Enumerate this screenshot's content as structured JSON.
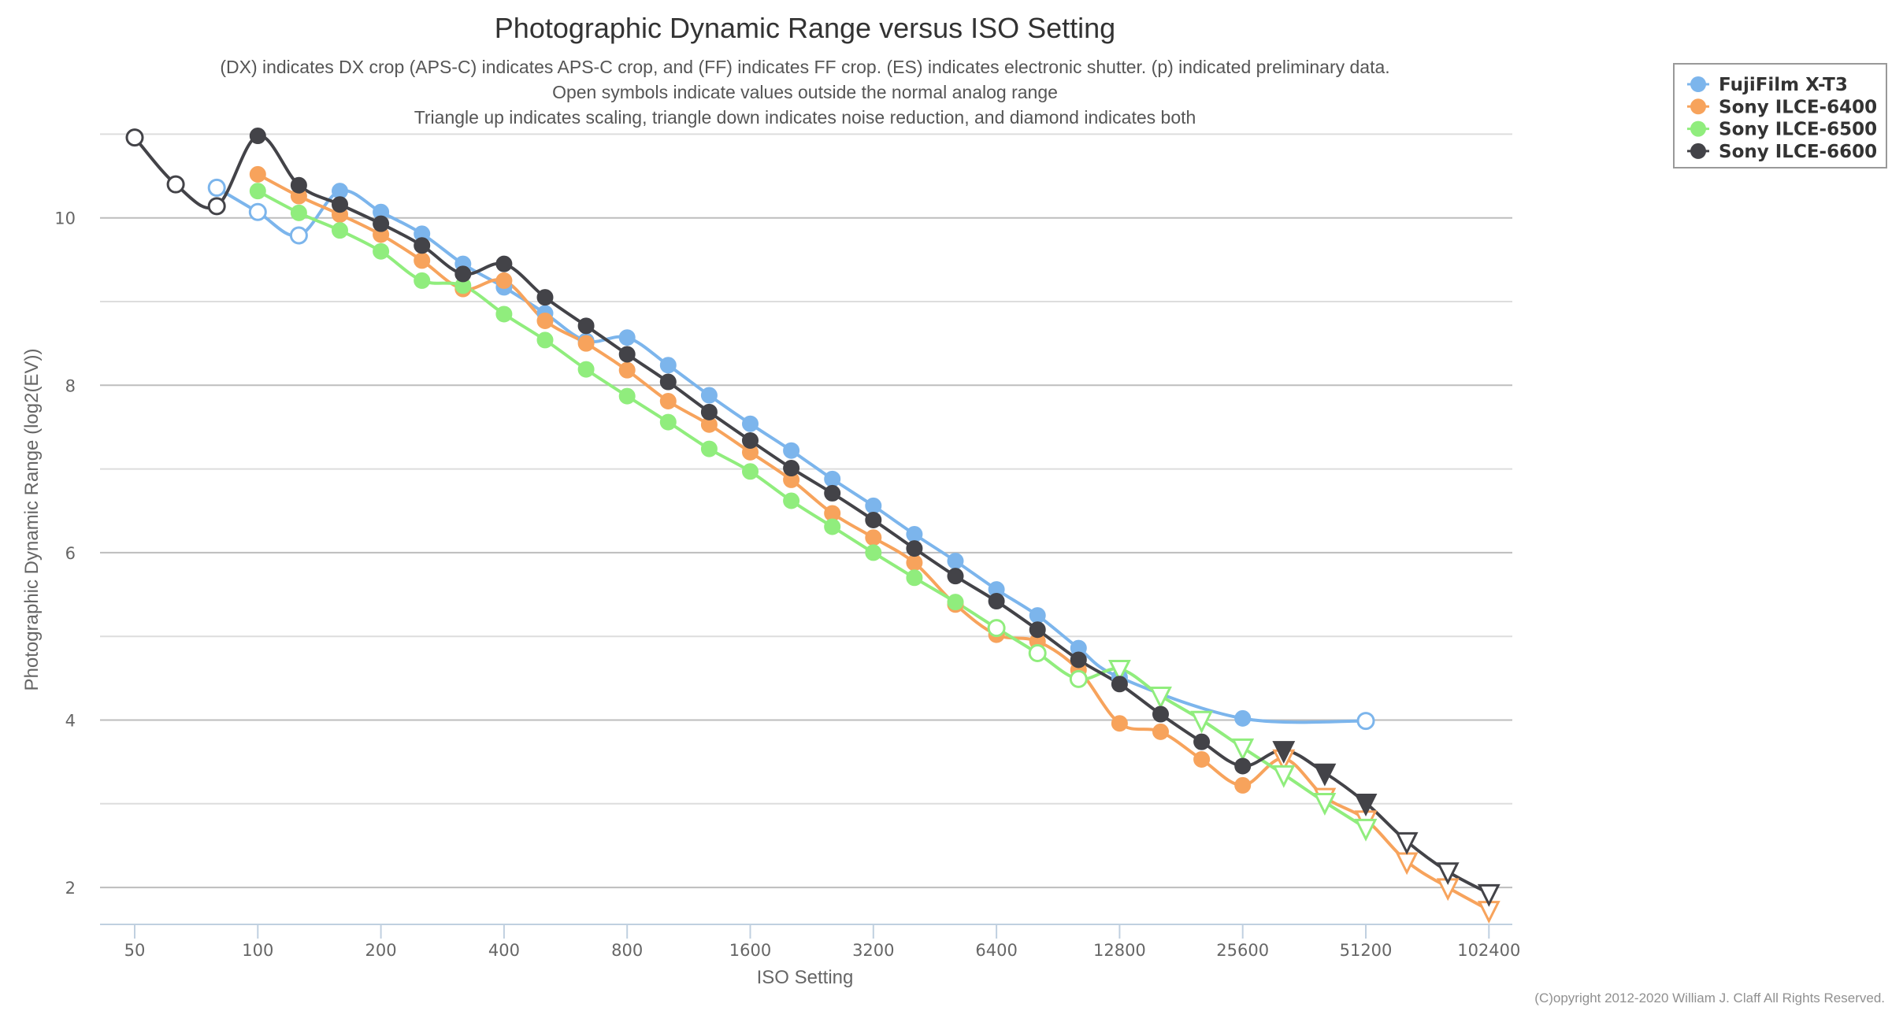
{
  "chart_data": {
    "type": "line",
    "title": "Photographic Dynamic Range versus ISO Setting",
    "subtitle": [
      "(DX) indicates DX crop (APS-C) indicates APS-C crop, and (FF) indicates FF crop. (ES) indicates electronic shutter. (p) indicated preliminary data.",
      "Open symbols indicate values outside the normal analog range",
      "Triangle up indicates scaling, triangle down indicates noise reduction, and diamond indicates both"
    ],
    "xlabel": "ISO Setting",
    "ylabel": "Photographic Dynamic Range (log2(EV))",
    "x_scale": "log2",
    "x_ticks": [
      50,
      100,
      200,
      400,
      800,
      1600,
      3200,
      6400,
      12800,
      25600,
      51200,
      102400
    ],
    "x_tick_labels": [
      "50",
      "100",
      "200",
      "400",
      "800",
      "1600",
      "3200",
      "6400",
      "12800",
      "25600",
      "51200",
      "102400"
    ],
    "xlim": [
      50,
      102400
    ],
    "ylim": [
      1.56,
      11
    ],
    "y_ticks": [
      2,
      4,
      6,
      8,
      10
    ],
    "y_tick_labels": [
      "2",
      "4",
      "6",
      "8",
      "10"
    ],
    "y_minor_gridlines": [
      3,
      5,
      7,
      9,
      11
    ],
    "grid": true,
    "legend_position": "top-right",
    "credit": "(C)opyright 2012-2020 William J. Claff All Rights Reserved.",
    "series": [
      {
        "name": "FujiFilm X-T3",
        "color": "#7cb5ec",
        "points": [
          {
            "iso": 80,
            "dr": 10.36,
            "marker": "circle-open"
          },
          {
            "iso": 100,
            "dr": 10.07,
            "marker": "circle-open"
          },
          {
            "iso": 125,
            "dr": 9.79,
            "marker": "circle-open"
          },
          {
            "iso": 160,
            "dr": 10.32,
            "marker": "circle"
          },
          {
            "iso": 200,
            "dr": 10.07,
            "marker": "circle"
          },
          {
            "iso": 250,
            "dr": 9.81,
            "marker": "circle"
          },
          {
            "iso": 320,
            "dr": 9.45,
            "marker": "circle"
          },
          {
            "iso": 400,
            "dr": 9.17,
            "marker": "circle"
          },
          {
            "iso": 500,
            "dr": 8.86,
            "marker": "circle"
          },
          {
            "iso": 640,
            "dr": 8.53,
            "marker": "circle"
          },
          {
            "iso": 800,
            "dr": 8.57,
            "marker": "circle"
          },
          {
            "iso": 1000,
            "dr": 8.24,
            "marker": "circle"
          },
          {
            "iso": 1250,
            "dr": 7.88,
            "marker": "circle"
          },
          {
            "iso": 1600,
            "dr": 7.54,
            "marker": "circle"
          },
          {
            "iso": 2000,
            "dr": 7.22,
            "marker": "circle"
          },
          {
            "iso": 2500,
            "dr": 6.88,
            "marker": "circle"
          },
          {
            "iso": 3200,
            "dr": 6.56,
            "marker": "circle"
          },
          {
            "iso": 4000,
            "dr": 6.22,
            "marker": "circle"
          },
          {
            "iso": 5000,
            "dr": 5.9,
            "marker": "circle"
          },
          {
            "iso": 6400,
            "dr": 5.56,
            "marker": "circle"
          },
          {
            "iso": 8000,
            "dr": 5.25,
            "marker": "circle"
          },
          {
            "iso": 10000,
            "dr": 4.86,
            "marker": "circle"
          },
          {
            "iso": 12800,
            "dr": 4.51,
            "marker": "circle"
          },
          {
            "iso": 25600,
            "dr": 4.02,
            "marker": "circle"
          },
          {
            "iso": 51200,
            "dr": 3.99,
            "marker": "circle-open"
          }
        ]
      },
      {
        "name": "Sony ILCE-6400",
        "color": "#f7a35c",
        "points": [
          {
            "iso": 100,
            "dr": 10.52,
            "marker": "circle"
          },
          {
            "iso": 125,
            "dr": 10.26,
            "marker": "circle"
          },
          {
            "iso": 160,
            "dr": 10.04,
            "marker": "circle"
          },
          {
            "iso": 200,
            "dr": 9.8,
            "marker": "circle"
          },
          {
            "iso": 250,
            "dr": 9.49,
            "marker": "circle"
          },
          {
            "iso": 320,
            "dr": 9.15,
            "marker": "circle"
          },
          {
            "iso": 400,
            "dr": 9.25,
            "marker": "circle"
          },
          {
            "iso": 500,
            "dr": 8.77,
            "marker": "circle"
          },
          {
            "iso": 640,
            "dr": 8.5,
            "marker": "circle"
          },
          {
            "iso": 800,
            "dr": 8.18,
            "marker": "circle"
          },
          {
            "iso": 1000,
            "dr": 7.81,
            "marker": "circle"
          },
          {
            "iso": 1250,
            "dr": 7.53,
            "marker": "circle"
          },
          {
            "iso": 1600,
            "dr": 7.2,
            "marker": "circle"
          },
          {
            "iso": 2000,
            "dr": 6.87,
            "marker": "circle"
          },
          {
            "iso": 2500,
            "dr": 6.47,
            "marker": "circle"
          },
          {
            "iso": 3200,
            "dr": 6.18,
            "marker": "circle"
          },
          {
            "iso": 4000,
            "dr": 5.88,
            "marker": "circle"
          },
          {
            "iso": 5000,
            "dr": 5.38,
            "marker": "circle"
          },
          {
            "iso": 6400,
            "dr": 5.02,
            "marker": "circle"
          },
          {
            "iso": 8000,
            "dr": 4.94,
            "marker": "circle"
          },
          {
            "iso": 10000,
            "dr": 4.6,
            "marker": "circle"
          },
          {
            "iso": 12800,
            "dr": 3.96,
            "marker": "circle"
          },
          {
            "iso": 16000,
            "dr": 3.86,
            "marker": "circle"
          },
          {
            "iso": 20000,
            "dr": 3.53,
            "marker": "circle"
          },
          {
            "iso": 25600,
            "dr": 3.22,
            "marker": "circle"
          },
          {
            "iso": 32000,
            "dr": 3.54,
            "marker": "triangle-down-open"
          },
          {
            "iso": 40000,
            "dr": 3.08,
            "marker": "triangle-down-open"
          },
          {
            "iso": 51200,
            "dr": 2.81,
            "marker": "triangle-down-open"
          },
          {
            "iso": 64000,
            "dr": 2.31,
            "marker": "triangle-down-open"
          },
          {
            "iso": 80000,
            "dr": 2.0,
            "marker": "triangle-down-open"
          },
          {
            "iso": 102400,
            "dr": 1.73,
            "marker": "triangle-down-open"
          }
        ]
      },
      {
        "name": "Sony ILCE-6500",
        "color": "#90ed7d",
        "points": [
          {
            "iso": 100,
            "dr": 10.32,
            "marker": "circle"
          },
          {
            "iso": 125,
            "dr": 10.06,
            "marker": "circle"
          },
          {
            "iso": 160,
            "dr": 9.85,
            "marker": "circle"
          },
          {
            "iso": 200,
            "dr": 9.6,
            "marker": "circle"
          },
          {
            "iso": 250,
            "dr": 9.25,
            "marker": "circle"
          },
          {
            "iso": 320,
            "dr": 9.19,
            "marker": "circle"
          },
          {
            "iso": 400,
            "dr": 8.85,
            "marker": "circle"
          },
          {
            "iso": 500,
            "dr": 8.54,
            "marker": "circle"
          },
          {
            "iso": 640,
            "dr": 8.19,
            "marker": "circle"
          },
          {
            "iso": 800,
            "dr": 7.87,
            "marker": "circle"
          },
          {
            "iso": 1000,
            "dr": 7.56,
            "marker": "circle"
          },
          {
            "iso": 1250,
            "dr": 7.24,
            "marker": "circle"
          },
          {
            "iso": 1600,
            "dr": 6.97,
            "marker": "circle"
          },
          {
            "iso": 2000,
            "dr": 6.62,
            "marker": "circle"
          },
          {
            "iso": 2500,
            "dr": 6.31,
            "marker": "circle"
          },
          {
            "iso": 3200,
            "dr": 6.0,
            "marker": "circle"
          },
          {
            "iso": 4000,
            "dr": 5.7,
            "marker": "circle"
          },
          {
            "iso": 5000,
            "dr": 5.41,
            "marker": "circle"
          },
          {
            "iso": 6400,
            "dr": 5.1,
            "marker": "circle-open"
          },
          {
            "iso": 8000,
            "dr": 4.8,
            "marker": "circle-open"
          },
          {
            "iso": 10000,
            "dr": 4.49,
            "marker": "circle-open"
          },
          {
            "iso": 12800,
            "dr": 4.61,
            "marker": "triangle-down-open"
          },
          {
            "iso": 16000,
            "dr": 4.29,
            "marker": "triangle-down-open"
          },
          {
            "iso": 20000,
            "dr": 4.0,
            "marker": "triangle-down-open"
          },
          {
            "iso": 25600,
            "dr": 3.67,
            "marker": "triangle-down-open"
          },
          {
            "iso": 32000,
            "dr": 3.35,
            "marker": "triangle-down-open"
          },
          {
            "iso": 40000,
            "dr": 3.02,
            "marker": "triangle-down-open"
          },
          {
            "iso": 51200,
            "dr": 2.71,
            "marker": "triangle-down-open"
          }
        ]
      },
      {
        "name": "Sony ILCE-6600",
        "color": "#434348",
        "points": [
          {
            "iso": 50,
            "dr": 10.96,
            "marker": "circle-open"
          },
          {
            "iso": 64,
            "dr": 10.4,
            "marker": "circle-open"
          },
          {
            "iso": 80,
            "dr": 10.14,
            "marker": "circle-open"
          },
          {
            "iso": 100,
            "dr": 10.98,
            "marker": "circle"
          },
          {
            "iso": 125,
            "dr": 10.39,
            "marker": "circle"
          },
          {
            "iso": 160,
            "dr": 10.16,
            "marker": "circle"
          },
          {
            "iso": 200,
            "dr": 9.93,
            "marker": "circle"
          },
          {
            "iso": 250,
            "dr": 9.67,
            "marker": "circle"
          },
          {
            "iso": 320,
            "dr": 9.33,
            "marker": "circle"
          },
          {
            "iso": 400,
            "dr": 9.45,
            "marker": "circle"
          },
          {
            "iso": 500,
            "dr": 9.05,
            "marker": "circle"
          },
          {
            "iso": 640,
            "dr": 8.71,
            "marker": "circle"
          },
          {
            "iso": 800,
            "dr": 8.37,
            "marker": "circle"
          },
          {
            "iso": 1000,
            "dr": 8.04,
            "marker": "circle"
          },
          {
            "iso": 1250,
            "dr": 7.68,
            "marker": "circle"
          },
          {
            "iso": 1600,
            "dr": 7.34,
            "marker": "circle"
          },
          {
            "iso": 2000,
            "dr": 7.01,
            "marker": "circle"
          },
          {
            "iso": 2500,
            "dr": 6.71,
            "marker": "circle"
          },
          {
            "iso": 3200,
            "dr": 6.39,
            "marker": "circle"
          },
          {
            "iso": 4000,
            "dr": 6.05,
            "marker": "circle"
          },
          {
            "iso": 5000,
            "dr": 5.72,
            "marker": "circle"
          },
          {
            "iso": 6400,
            "dr": 5.42,
            "marker": "circle"
          },
          {
            "iso": 8000,
            "dr": 5.08,
            "marker": "circle"
          },
          {
            "iso": 10000,
            "dr": 4.72,
            "marker": "circle"
          },
          {
            "iso": 12800,
            "dr": 4.43,
            "marker": "circle"
          },
          {
            "iso": 16000,
            "dr": 4.07,
            "marker": "circle"
          },
          {
            "iso": 20000,
            "dr": 3.74,
            "marker": "circle"
          },
          {
            "iso": 25600,
            "dr": 3.45,
            "marker": "circle"
          },
          {
            "iso": 32000,
            "dr": 3.64,
            "marker": "triangle-down"
          },
          {
            "iso": 40000,
            "dr": 3.37,
            "marker": "triangle-down"
          },
          {
            "iso": 51200,
            "dr": 3.01,
            "marker": "triangle-down"
          },
          {
            "iso": 64000,
            "dr": 2.55,
            "marker": "triangle-down-open"
          },
          {
            "iso": 80000,
            "dr": 2.19,
            "marker": "triangle-down-open"
          },
          {
            "iso": 102400,
            "dr": 1.93,
            "marker": "triangle-down-open"
          }
        ]
      }
    ]
  }
}
